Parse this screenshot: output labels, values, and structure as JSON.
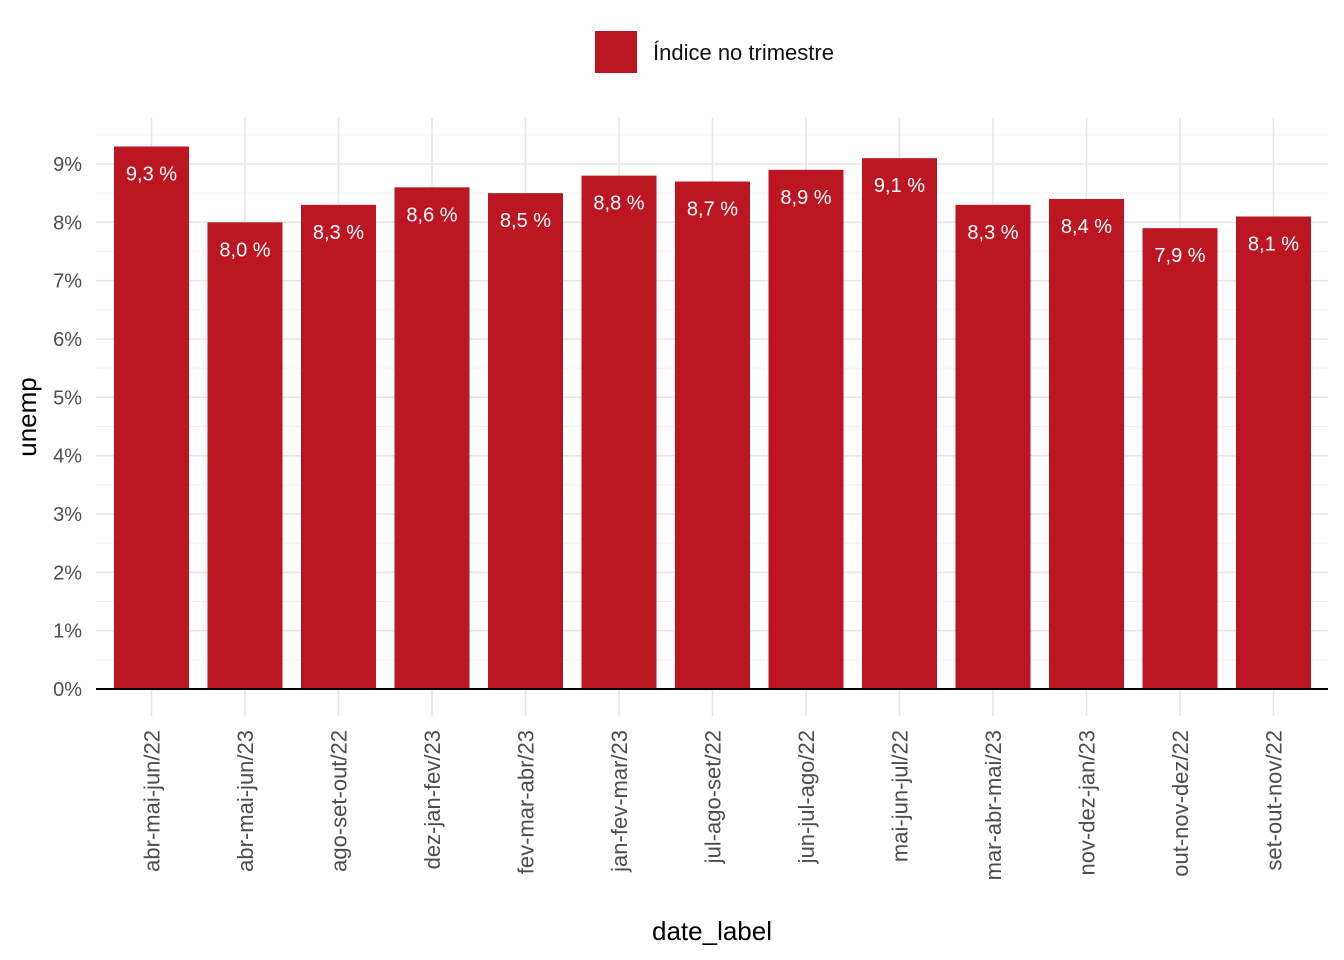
{
  "chart_data": {
    "type": "bar",
    "xlabel": "date_label",
    "ylabel": "unemp",
    "ylim": [
      0,
      0.095
    ],
    "yticks": [
      {
        "value": 0.0,
        "label": "0%"
      },
      {
        "value": 0.01,
        "label": "1%"
      },
      {
        "value": 0.02,
        "label": "2%"
      },
      {
        "value": 0.03,
        "label": "3%"
      },
      {
        "value": 0.04,
        "label": "4%"
      },
      {
        "value": 0.05,
        "label": "5%"
      },
      {
        "value": 0.06,
        "label": "6%"
      },
      {
        "value": 0.07,
        "label": "7%"
      },
      {
        "value": 0.08,
        "label": "8%"
      },
      {
        "value": 0.09,
        "label": "9%"
      }
    ],
    "categories": [
      "abr-mai-jun/22",
      "abr-mai-jun/23",
      "ago-set-out/22",
      "dez-jan-fev/23",
      "fev-mar-abr/23",
      "jan-fev-mar/23",
      "jul-ago-set/22",
      "jun-jul-ago/22",
      "mai-jun-jul/22",
      "mar-abr-mai/23",
      "nov-dez-jan/23",
      "out-nov-dez/22",
      "set-out-nov/22"
    ],
    "series": [
      {
        "name": "Índice no trimestre",
        "color": "#bb1622",
        "values": [
          0.093,
          0.08,
          0.083,
          0.086,
          0.085,
          0.088,
          0.087,
          0.089,
          0.091,
          0.083,
          0.084,
          0.079,
          0.081
        ],
        "labels": [
          "9,3 %",
          "8,0 %",
          "8,3 %",
          "8,6 %",
          "8,5 %",
          "8,8 %",
          "8,7 %",
          "8,9 %",
          "9,1 %",
          "8,3 %",
          "8,4 %",
          "7,9 %",
          "8,1 %"
        ]
      }
    ],
    "legend": "top",
    "grid": true
  }
}
